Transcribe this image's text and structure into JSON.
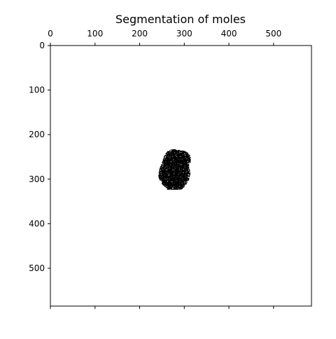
{
  "chart_data": {
    "type": "heatmap",
    "title": "Segmentation of moles",
    "image_shape": [
      585,
      585
    ],
    "x_axis": {
      "position": "top",
      "ticks": [
        0,
        100,
        200,
        300,
        400,
        500
      ],
      "range": [
        0,
        585
      ]
    },
    "y_axis": {
      "position": "left",
      "ticks": [
        0,
        100,
        200,
        300,
        400,
        500
      ],
      "range": [
        0,
        585
      ],
      "inverted": true
    },
    "bottom_ticks_unlabeled": [
      0,
      100,
      200,
      300,
      400,
      500
    ],
    "grid": false,
    "colormap": "gray",
    "background_value": "white",
    "mask_value": "black",
    "mask_region": {
      "x_range": [
        240,
        315
      ],
      "y_range": [
        232,
        325
      ],
      "rows": [
        {
          "y": 233,
          "x": [
            270,
            283
          ]
        },
        {
          "y": 237,
          "x": [
            262,
            304
          ]
        },
        {
          "y": 242,
          "x": [
            258,
            310
          ]
        },
        {
          "y": 247,
          "x": [
            255,
            312
          ]
        },
        {
          "y": 252,
          "x": [
            253,
            313
          ]
        },
        {
          "y": 257,
          "x": [
            252,
            313
          ]
        },
        {
          "y": 262,
          "x": [
            250,
            312
          ]
        },
        {
          "y": 267,
          "x": [
            248,
            311
          ]
        },
        {
          "y": 272,
          "x": [
            246,
            310
          ]
        },
        {
          "y": 277,
          "x": [
            244,
            311
          ]
        },
        {
          "y": 282,
          "x": [
            243,
            312
          ]
        },
        {
          "y": 287,
          "x": [
            242,
            312
          ]
        },
        {
          "y": 292,
          "x": [
            242,
            311
          ]
        },
        {
          "y": 297,
          "x": [
            243,
            310
          ]
        },
        {
          "y": 302,
          "x": [
            245,
            308
          ]
        },
        {
          "y": 307,
          "x": [
            248,
            305
          ]
        },
        {
          "y": 312,
          "x": [
            252,
            302
          ]
        },
        {
          "y": 317,
          "x": [
            257,
            298
          ]
        },
        {
          "y": 322,
          "x": [
            262,
            293
          ]
        }
      ]
    }
  }
}
